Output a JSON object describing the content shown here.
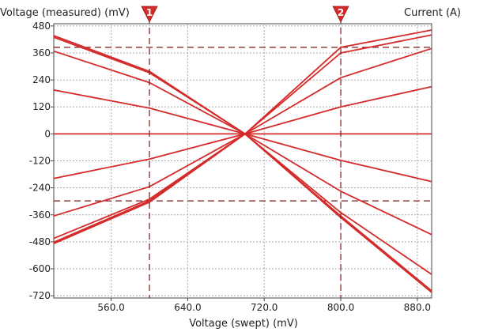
{
  "chart_data": {
    "type": "line",
    "ylabel_left": "Voltage (measured) (mV)",
    "ylabel_right": "Current (A)",
    "xlabel": "Voltage (swept) (mV)",
    "xlim": [
      500,
      895
    ],
    "ylim": [
      -730,
      490
    ],
    "x_ticks": [
      560,
      640,
      720,
      800,
      880
    ],
    "x_tick_labels": [
      "560.0",
      "640.0",
      "720.0",
      "800.0",
      "880.0"
    ],
    "y_ticks": [
      480,
      360,
      240,
      120,
      0,
      -120,
      -240,
      -360,
      -480,
      -600,
      -720
    ],
    "y_tick_labels": [
      "480",
      "360",
      "240",
      "120",
      "0",
      "-120",
      "-240",
      "-360",
      "-480",
      "-600",
      "-720"
    ],
    "grid": true,
    "line_color": "#d42a2a",
    "cursor_color": "#7a1a1a",
    "cursors": {
      "vertical": [
        {
          "label": "1",
          "x": 600
        },
        {
          "label": "2",
          "x": 800
        }
      ],
      "horizontal": [
        385,
        -298
      ]
    },
    "series": [
      {
        "x": [
          500,
          600,
          700,
          800,
          895
        ],
        "y": [
          437,
          278,
          0,
          385,
          462
        ]
      },
      {
        "x": [
          500,
          600,
          700,
          800,
          895
        ],
        "y": [
          430,
          272,
          0,
          360,
          440
        ]
      },
      {
        "x": [
          500,
          600,
          700,
          800,
          895
        ],
        "y": [
          368,
          228,
          0,
          250,
          380
        ]
      },
      {
        "x": [
          500,
          600,
          700,
          800,
          895
        ],
        "y": [
          195,
          115,
          0,
          120,
          210
        ]
      },
      {
        "x": [
          500,
          895
        ],
        "y": [
          0,
          0
        ]
      },
      {
        "x": [
          500,
          600,
          700,
          800,
          895
        ],
        "y": [
          -198,
          -112,
          0,
          -118,
          -212
        ]
      },
      {
        "x": [
          500,
          600,
          700,
          800,
          895
        ],
        "y": [
          -365,
          -235,
          0,
          -255,
          -448
        ]
      },
      {
        "x": [
          500,
          600,
          700,
          800,
          895
        ],
        "y": [
          -465,
          -290,
          0,
          -350,
          -625
        ]
      },
      {
        "x": [
          500,
          600,
          700,
          800,
          895
        ],
        "y": [
          -482,
          -298,
          0,
          -365,
          -698
        ]
      },
      {
        "x": [
          500,
          600,
          700,
          800,
          895
        ],
        "y": [
          -488,
          -304,
          0,
          -372,
          -705
        ]
      }
    ]
  }
}
